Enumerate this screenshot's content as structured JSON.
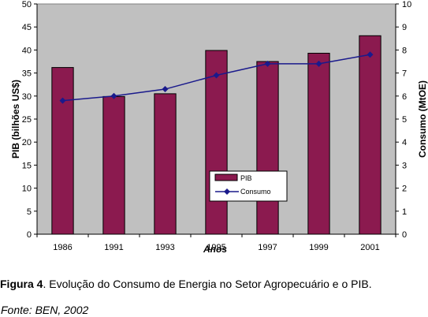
{
  "chart_data": {
    "type": "bar",
    "categories": [
      "1986",
      "1991",
      "1993",
      "1995",
      "1997",
      "1999",
      "2001"
    ],
    "series": [
      {
        "name": "PIB",
        "type": "bar",
        "axis": "left",
        "values": [
          36.2,
          29.9,
          30.5,
          39.9,
          37.5,
          39.3,
          43.1
        ],
        "color": "#8B1A4F"
      },
      {
        "name": "Consumo",
        "type": "line",
        "axis": "right",
        "values": [
          5.8,
          6.0,
          6.3,
          6.9,
          7.4,
          7.4,
          7.8
        ],
        "color": "#1A1A8C",
        "marker": "diamond"
      }
    ],
    "xlabel": "Anos",
    "ylabel": "PIB (bilhões US$)",
    "y2label": "Consumo (MtOE)",
    "ylim": [
      0,
      50
    ],
    "y2lim": [
      0,
      10
    ],
    "yticks": [
      "0",
      "5",
      "10",
      "15",
      "20",
      "25",
      "30",
      "35",
      "40",
      "45",
      "50"
    ],
    "y2ticks": [
      "0",
      "1",
      "2",
      "3",
      "4",
      "5",
      "6",
      "7",
      "8",
      "9",
      "10"
    ],
    "plot_background": "#C0C0C0",
    "grid": false,
    "legend_placement": "center-bottom"
  },
  "caption": {
    "label": "Figura 4",
    "text": ". Evolução do Consumo de Energia no Setor Agropecuário e o PIB."
  },
  "source": "Fonte: BEN, 2002"
}
